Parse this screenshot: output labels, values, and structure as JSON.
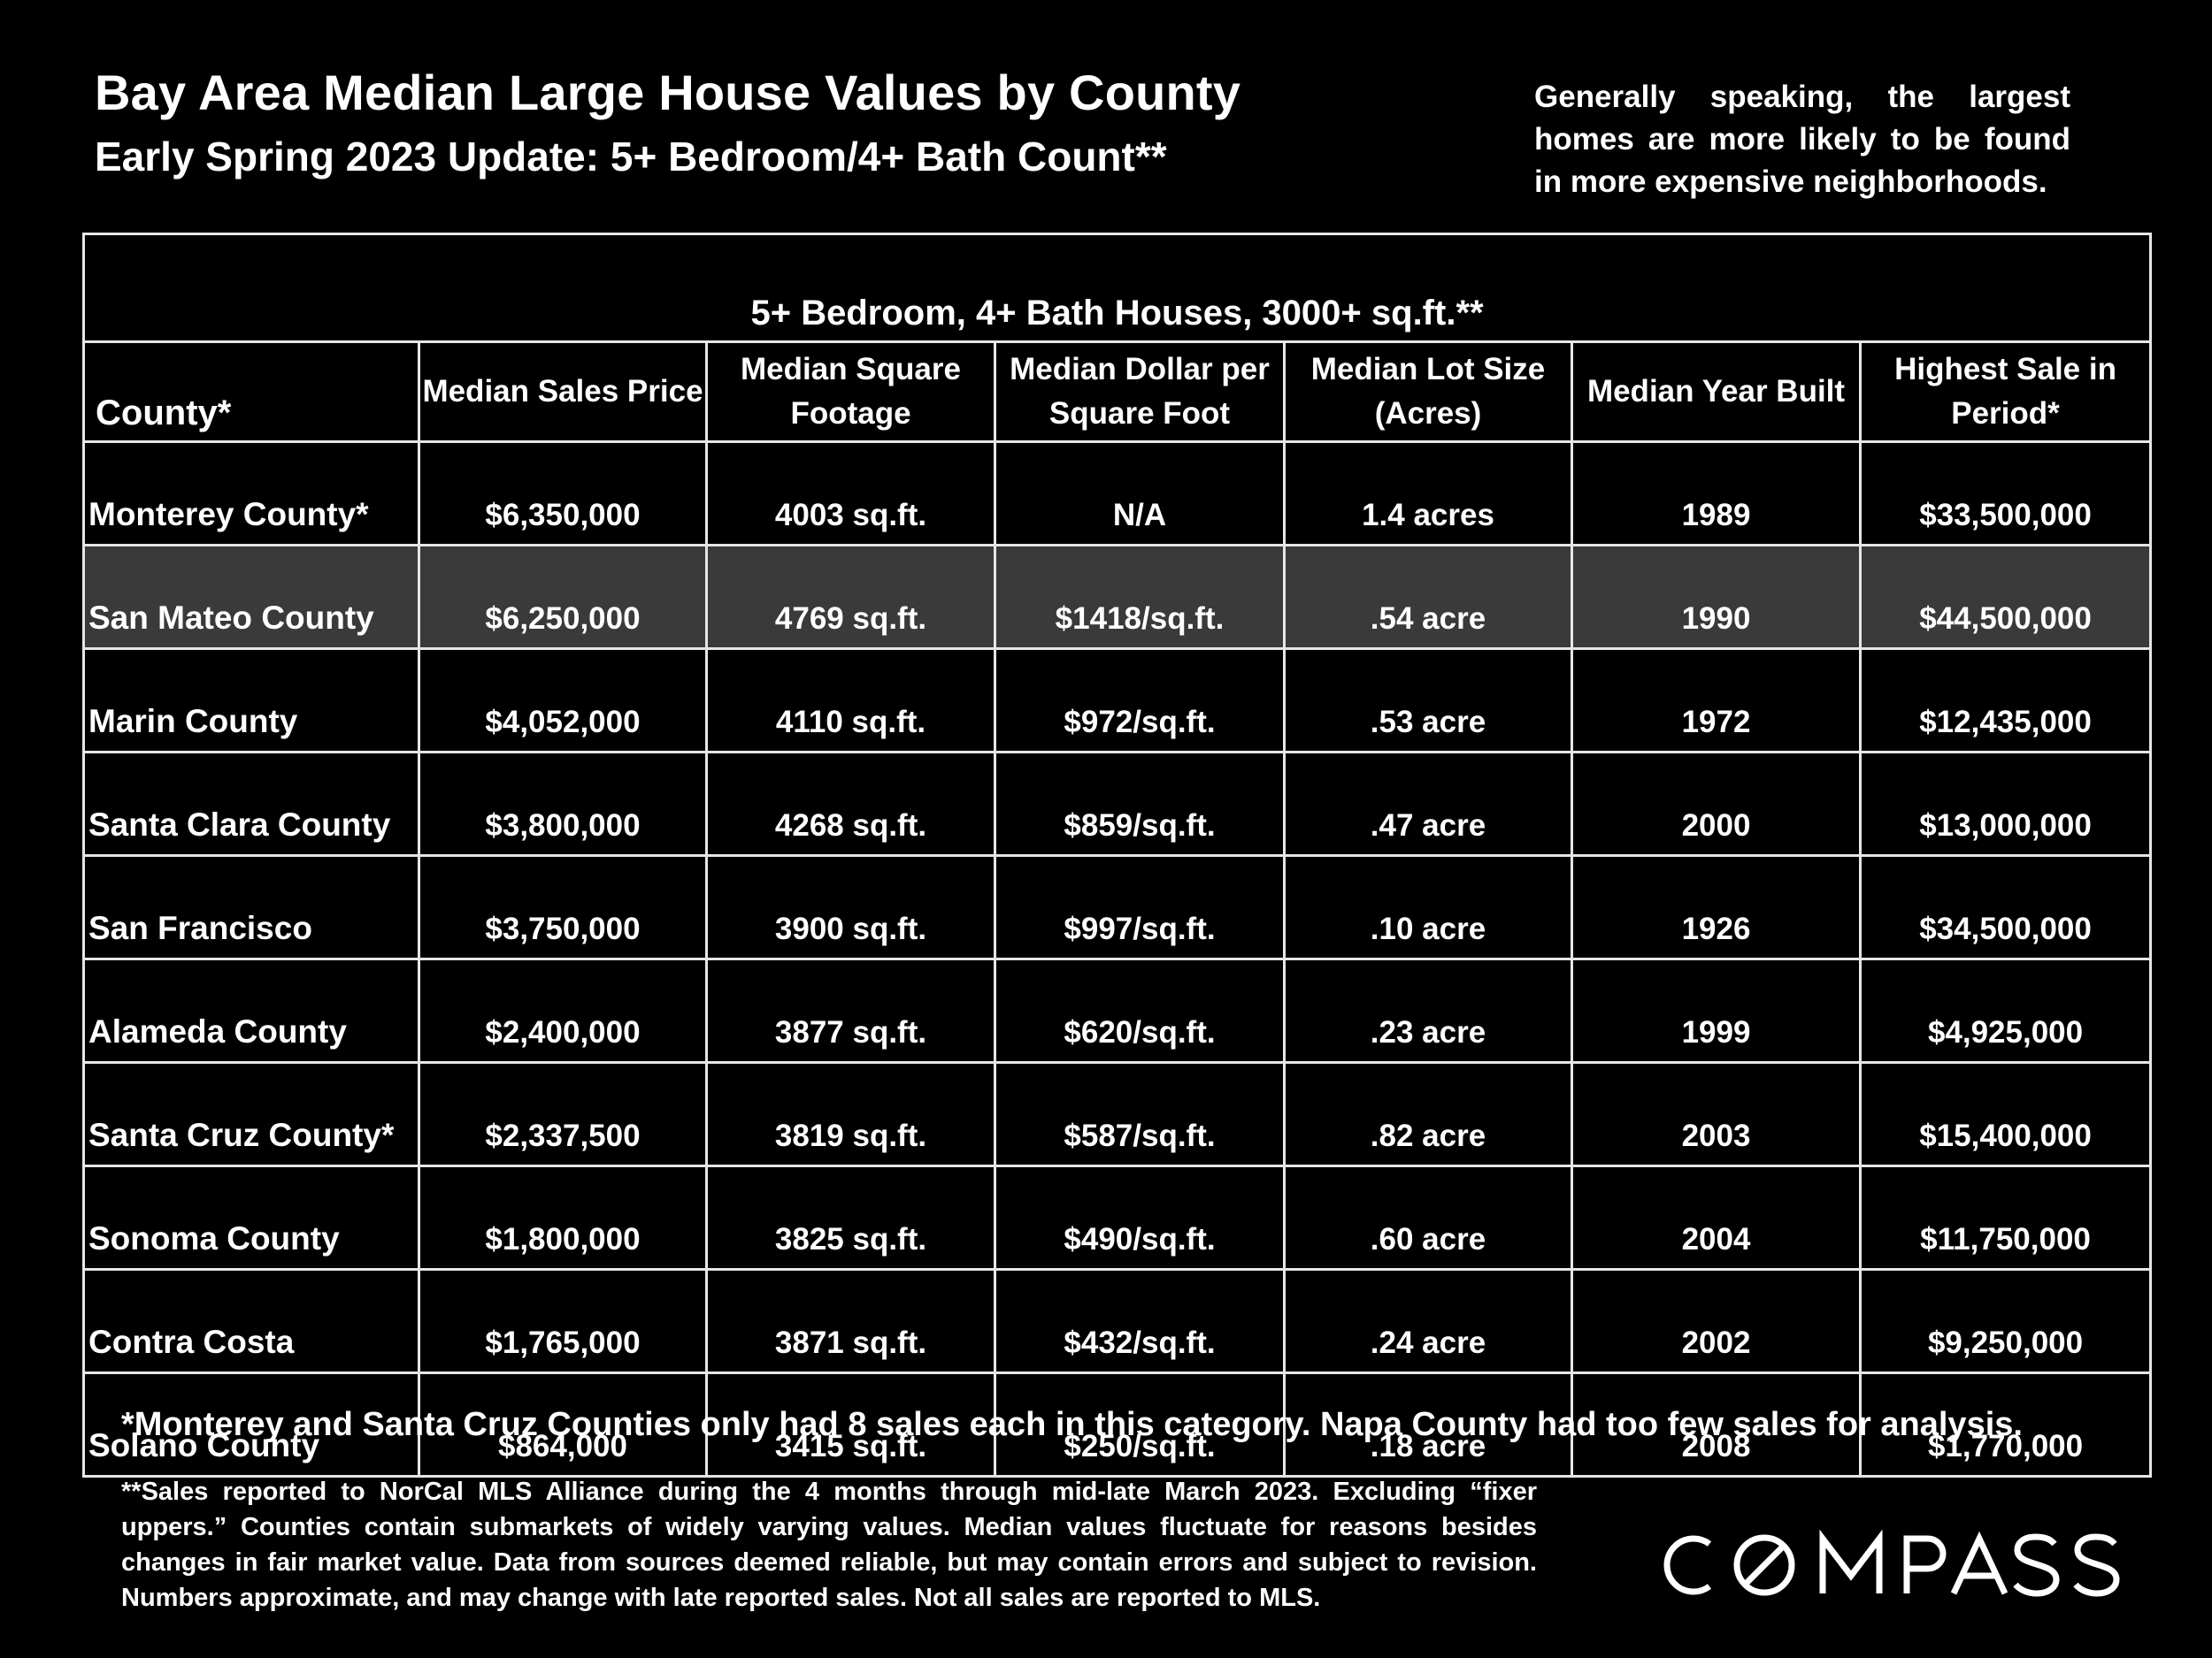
{
  "header": {
    "title": "Bay Area Median Large House Values by County",
    "subtitle": "Early Spring 2023 Update: 5+ Bedroom/4+ Bath Count**",
    "side_note": "Generally speaking, the largest homes are more likely to be found in more expensive neighborhoods."
  },
  "table": {
    "band_title": "5+ Bedroom, 4+ Bath Houses, 3000+ sq.ft.**",
    "columns": [
      "County*",
      "Median Sales Price",
      "Median Square Footage",
      "Median Dollar per Square Foot",
      "Median Lot Size (Acres)",
      "Median Year Built",
      "Highest Sale in Period*"
    ],
    "rows": [
      [
        "Monterey County*",
        "$6,350,000",
        "4003 sq.ft.",
        "N/A",
        "1.4 acres",
        "1989",
        "$33,500,000"
      ],
      [
        "San Mateo County",
        "$6,250,000",
        "4769 sq.ft.",
        "$1418/sq.ft.",
        ".54 acre",
        "1990",
        "$44,500,000"
      ],
      [
        "Marin County",
        "$4,052,000",
        "4110 sq.ft.",
        "$972/sq.ft.",
        ".53 acre",
        "1972",
        "$12,435,000"
      ],
      [
        "Santa Clara County",
        "$3,800,000",
        "4268 sq.ft.",
        "$859/sq.ft.",
        ".47 acre",
        "2000",
        "$13,000,000"
      ],
      [
        "San Francisco",
        "$3,750,000",
        "3900 sq.ft.",
        "$997/sq.ft.",
        ".10 acre",
        "1926",
        "$34,500,000"
      ],
      [
        "Alameda County",
        "$2,400,000",
        "3877 sq.ft.",
        "$620/sq.ft.",
        ".23 acre",
        "1999",
        "$4,925,000"
      ],
      [
        "Santa Cruz County*",
        "$2,337,500",
        "3819 sq.ft.",
        "$587/sq.ft.",
        ".82 acre",
        "2003",
        "$15,400,000"
      ],
      [
        "Sonoma County",
        "$1,800,000",
        "3825 sq.ft.",
        "$490/sq.ft.",
        ".60 acre",
        "2004",
        "$11,750,000"
      ],
      [
        "Contra Costa",
        "$1,765,000",
        "3871 sq.ft.",
        "$432/sq.ft.",
        ".24 acre",
        "2002",
        "$9,250,000"
      ],
      [
        "Solano County",
        "$864,000",
        "3415 sq.ft.",
        "$250/sq.ft.",
        ".18 acre",
        "2008",
        "$1,770,000"
      ]
    ],
    "highlight_row_color": "#3a3a3a"
  },
  "footnotes": {
    "primary": "*Monterey and Santa Cruz Counties only had 8 sales each in this category. Napa County had too few sales for analysis.",
    "secondary": "**Sales reported to NorCal MLS Alliance during the 4 months through mid-late March 2023. Excluding “fixer uppers.” Counties contain submarkets of widely varying values. Median values fluctuate for reasons besides changes in fair market value. Data from sources deemed reliable, but may contain errors and subject to revision.  Numbers approximate, and may change with late reported sales. Not all sales are reported to MLS."
  },
  "brand": {
    "logo_text": "COMPASS",
    "background_color": "#000000",
    "text_color": "#ffffff"
  }
}
